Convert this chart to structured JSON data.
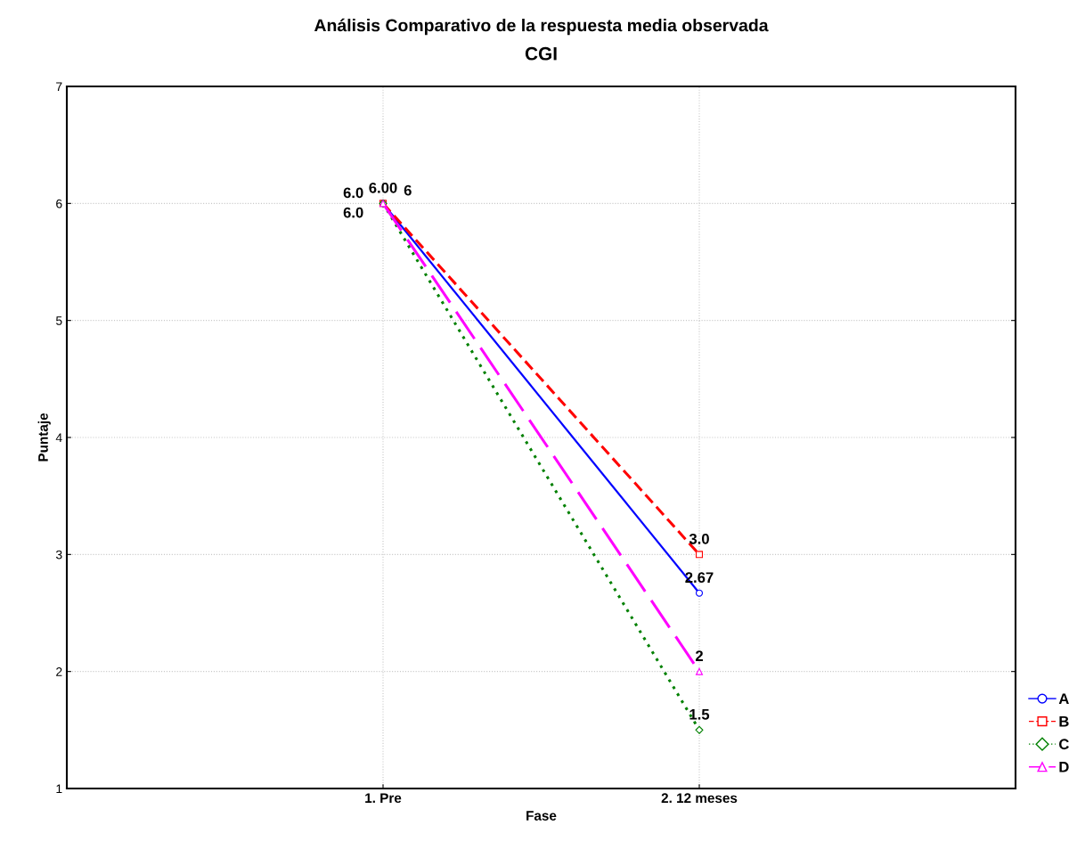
{
  "chart_data": {
    "type": "line",
    "title": "Análisis Comparativo de la respuesta media observada",
    "subtitle": "CGI",
    "xlabel": "Fase",
    "ylabel": "Puntaje",
    "categories": [
      "1. Pre",
      "2. 12 meses"
    ],
    "series": [
      {
        "name": "A",
        "color": "#0000ff",
        "values": [
          6,
          2.67
        ],
        "value_labels": [
          "6.00",
          "2.67"
        ],
        "marker": "circle",
        "line_style": "solid"
      },
      {
        "name": "B",
        "color": "#ff0000",
        "values": [
          6,
          3.0
        ],
        "value_labels": [
          "6.0",
          "3.0"
        ],
        "marker": "square",
        "line_style": "dashed"
      },
      {
        "name": "C",
        "color": "#008000",
        "values": [
          6,
          1.5
        ],
        "value_labels": [
          "6.0",
          "1.5"
        ],
        "marker": "diamond",
        "line_style": "dotted"
      },
      {
        "name": "D",
        "color": "#ff00ff",
        "values": [
          6,
          2
        ],
        "value_labels": [
          "6",
          "2"
        ],
        "marker": "triangle",
        "line_style": "longdash"
      }
    ],
    "ylim": [
      1,
      7
    ],
    "yticks": [
      1,
      2,
      3,
      4,
      5,
      6,
      7
    ],
    "grid": true,
    "legend": "bottom right"
  }
}
